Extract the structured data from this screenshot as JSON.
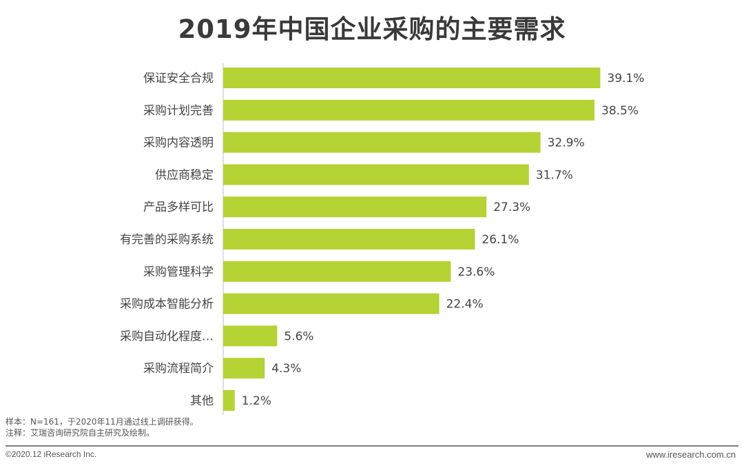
{
  "chart_data": {
    "type": "bar",
    "orientation": "horizontal",
    "title": "2019年中国企业采购的主要需求",
    "categories": [
      "保证安全合规",
      "采购计划完善",
      "采购内容透明",
      "供应商稳定",
      "产品多样可比",
      "有完善的采购系统",
      "采购管理科学",
      "采购成本智能分析",
      "采购自动化程度…",
      "采购流程简介",
      "其他"
    ],
    "values": [
      39.1,
      38.5,
      32.9,
      31.7,
      27.3,
      26.1,
      23.6,
      22.4,
      5.6,
      4.3,
      1.2
    ],
    "value_labels": [
      "39.1%",
      "38.5%",
      "32.9%",
      "31.7%",
      "27.3%",
      "26.1%",
      "23.6%",
      "22.4%",
      "5.6%",
      "4.3%",
      "1.2%"
    ],
    "unit": "%",
    "xlim": [
      0,
      40
    ],
    "bar_color": "#b5d334",
    "grid": false
  },
  "notes": {
    "sample": "样本：N=161，于2020年11月通过线上调研获得。",
    "note": "注释：艾瑞咨询研究院自主研究及绘制。"
  },
  "footer": {
    "copyright": "©2020.12 iResearch Inc.",
    "website": "www.iresearch.com.cn"
  }
}
